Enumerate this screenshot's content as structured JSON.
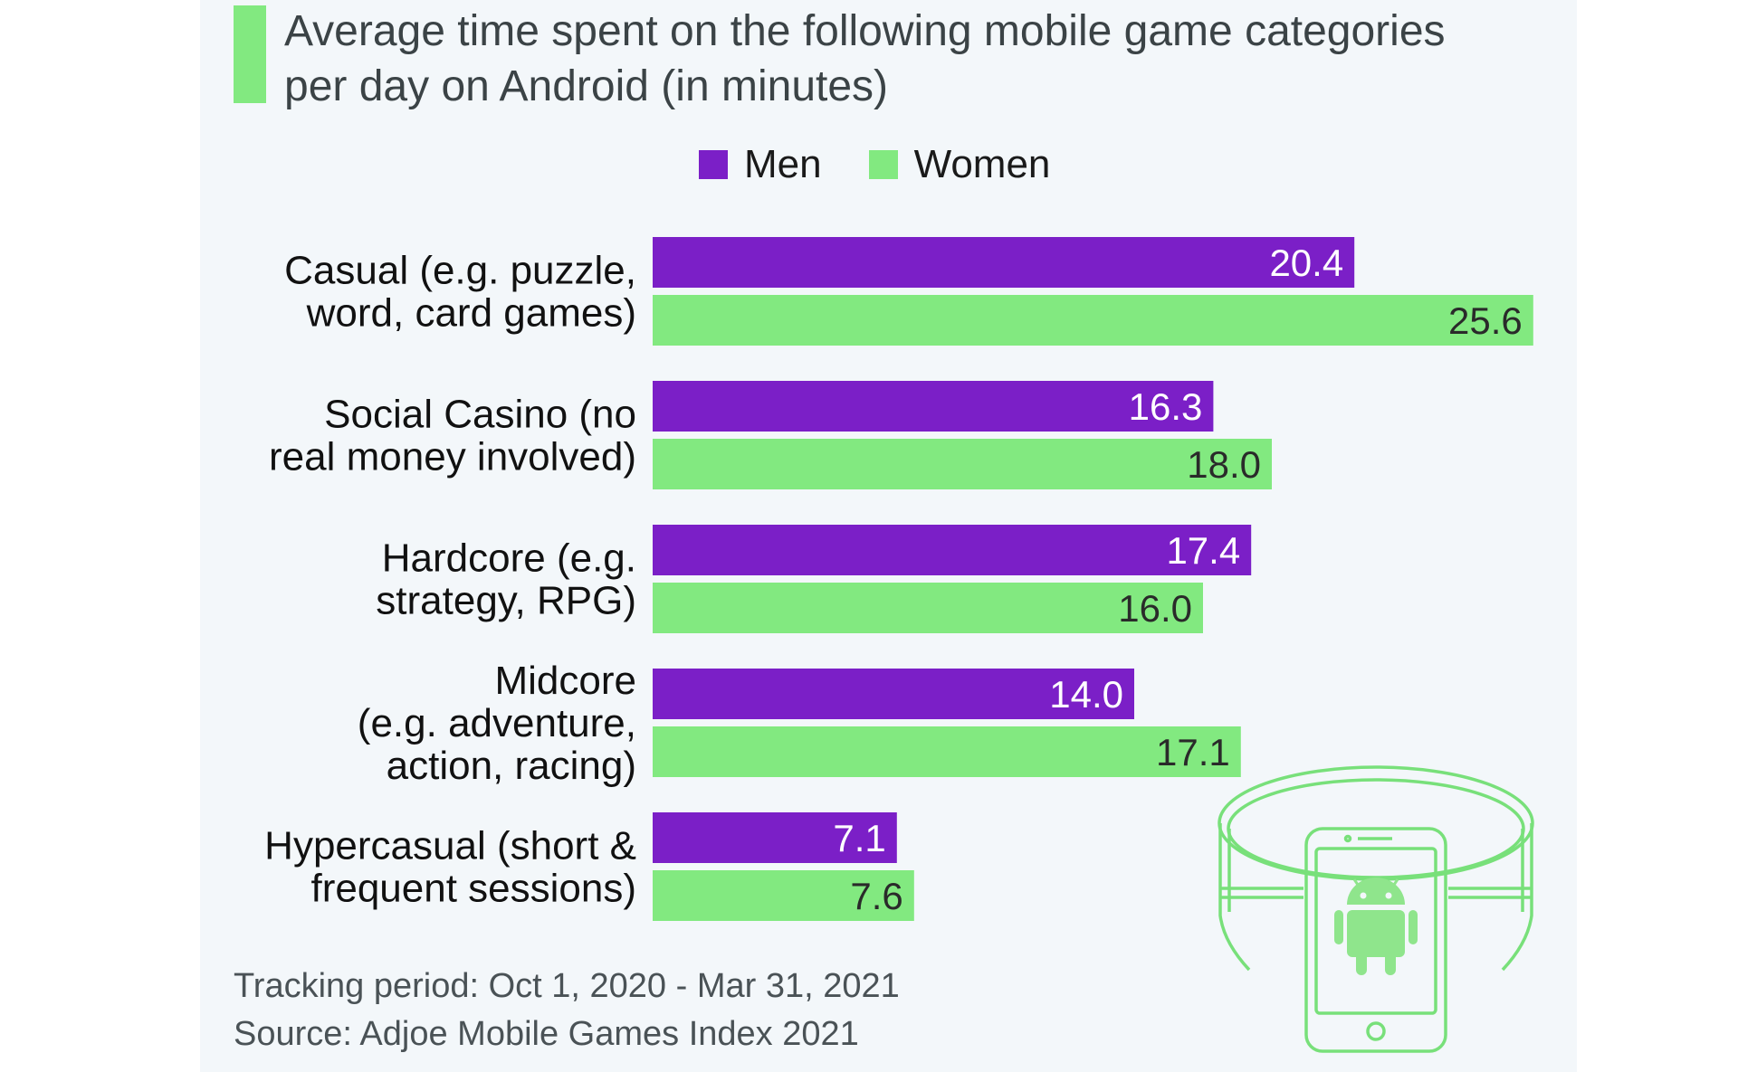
{
  "colors": {
    "men": "#7b1fc7",
    "women": "#82e980",
    "men_text": "#ffffff",
    "women_text": "#2a2a2a"
  },
  "icons": {
    "illustration": "android-phone-ring-icon"
  },
  "chart_data": {
    "type": "bar",
    "orientation": "horizontal",
    "title": "Average time spent on the following mobile game categories per day on Android (in minutes)",
    "legend": "top",
    "grid": false,
    "xlim": [
      0,
      26
    ],
    "categories": [
      [
        "Casual (e.g. puzzle,",
        "word, card games)"
      ],
      [
        "Social Casino (no",
        "real money involved)"
      ],
      [
        "Hardcore (e.g.",
        "strategy, RPG)"
      ],
      [
        "Midcore",
        "(e.g. adventure,",
        "action, racing)"
      ],
      [
        "Hypercasual (short &",
        "frequent sessions)"
      ]
    ],
    "series": [
      {
        "name": "Men",
        "values": [
          20.4,
          16.3,
          17.4,
          14.0,
          7.1
        ],
        "labels": [
          "20.4",
          "16.3",
          "17.4",
          "14.0",
          "7.1"
        ]
      },
      {
        "name": "Women",
        "values": [
          25.6,
          18.0,
          16.0,
          17.1,
          7.6
        ],
        "labels": [
          "25.6",
          "18.0",
          "16.0",
          "17.1",
          "7.6"
        ]
      }
    ]
  },
  "notes": {
    "tracking": "Tracking period: Oct 1, 2020 - Mar 31, 2021",
    "source": "Source: Adjoe Mobile Games Index 2021"
  }
}
